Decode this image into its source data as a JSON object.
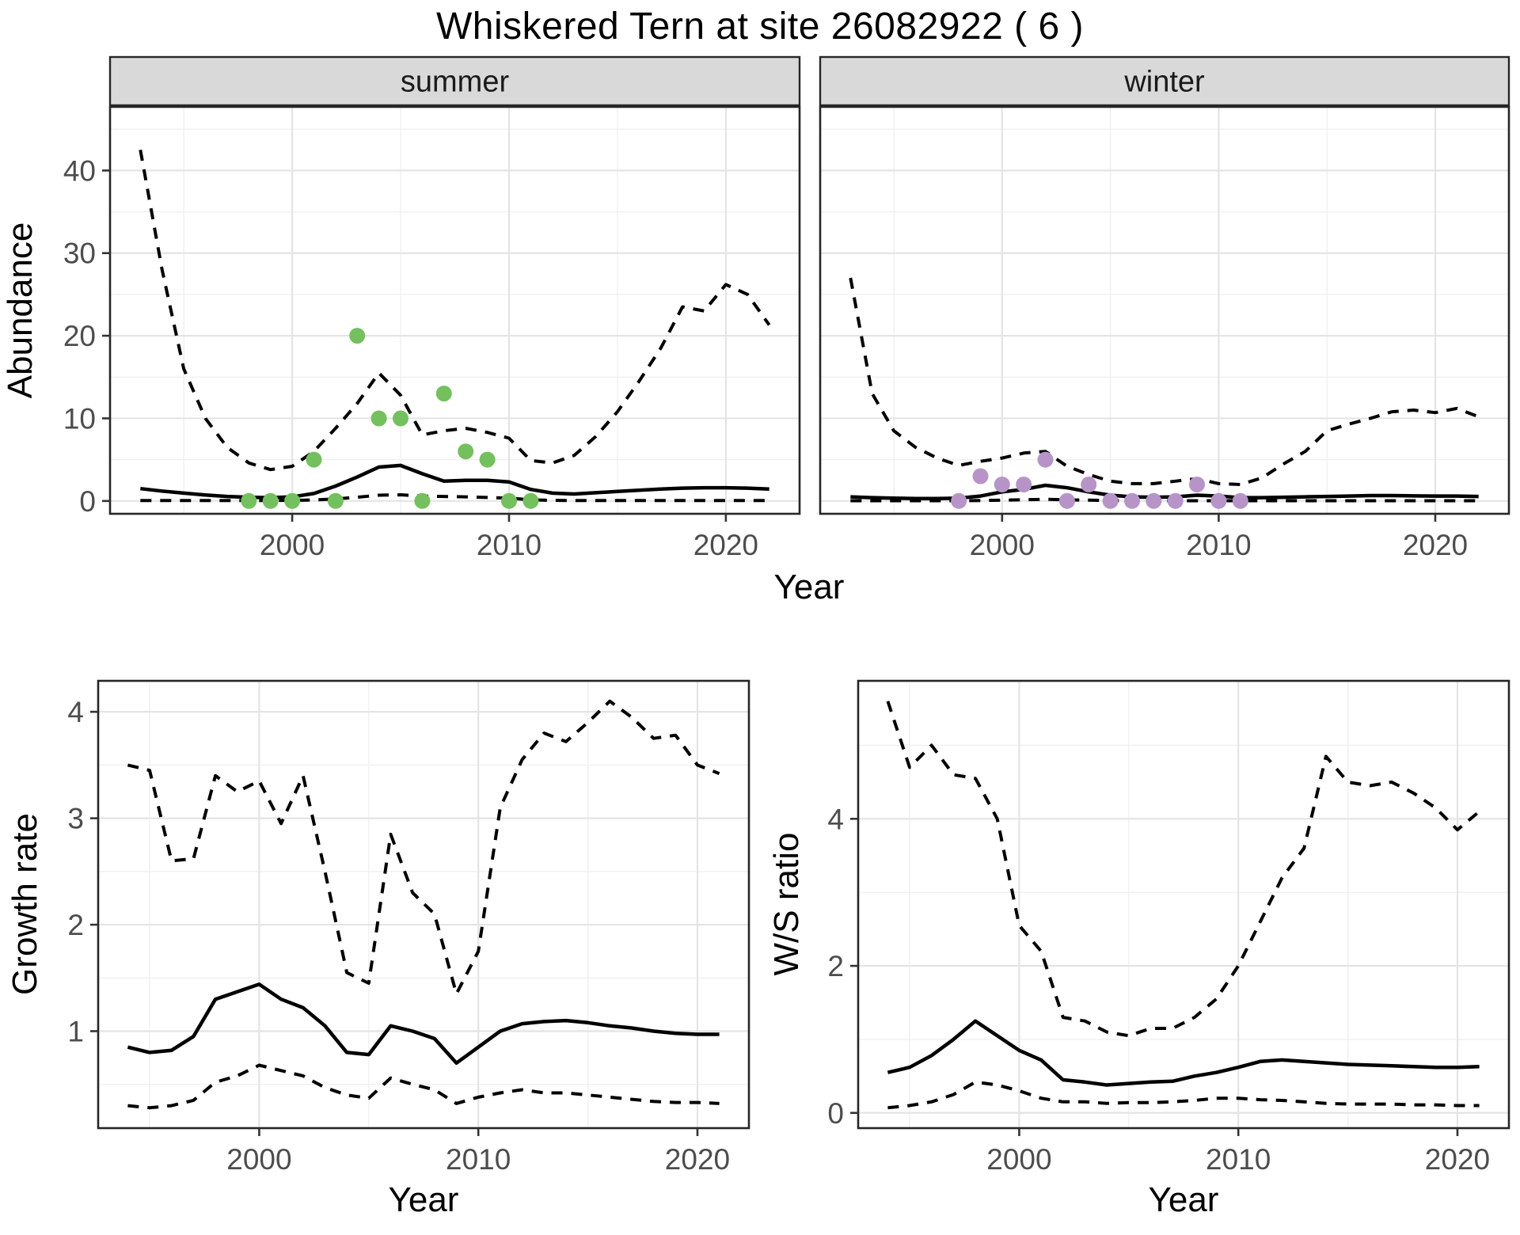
{
  "title": "Whiskered Tern at site 26082922 ( 6 )",
  "colors": {
    "strip_bg": "#d9d9d9",
    "strip_border": "#262626",
    "panel_border": "#262626",
    "grid_major": "#e4e4e4",
    "grid_minor": "#f0f0f0",
    "axis_text": "#4d4d4d",
    "title_text": "#000000",
    "line": "#000000",
    "summer_points": "#74c05e",
    "winter_points": "#b794c8"
  },
  "chart_data": [
    {
      "id": "abundance_summer",
      "type": "line",
      "facet_label": "summer",
      "ylabel": "Abundance",
      "xlabel": "Year",
      "x_range": [
        1991.6,
        2023.4
      ],
      "y_range": [
        -1.55,
        47.7
      ],
      "xticks": [
        2000,
        2010,
        2020
      ],
      "yticks": [
        0,
        10,
        20,
        30,
        40
      ],
      "x": [
        1993,
        1994,
        1995,
        1996,
        1997,
        1998,
        1999,
        2000,
        2001,
        2002,
        2003,
        2004,
        2005,
        2006,
        2007,
        2008,
        2009,
        2010,
        2011,
        2012,
        2013,
        2014,
        2015,
        2016,
        2017,
        2018,
        2019,
        2020,
        2021,
        2022
      ],
      "series": [
        {
          "name": "upper_95ci",
          "style": "dashed",
          "values": [
            42.5,
            28,
            16,
            10,
            6.5,
            4.6,
            3.8,
            4.2,
            6,
            8.8,
            11.8,
            15.5,
            12.8,
            8,
            8.5,
            8.8,
            8.3,
            7.6,
            4.9,
            4.6,
            5.5,
            7.8,
            10.8,
            14.5,
            18.5,
            23.5,
            23,
            26.2,
            25,
            21.3
          ]
        },
        {
          "name": "mean",
          "style": "solid",
          "values": [
            1.5,
            1.2,
            0.95,
            0.72,
            0.55,
            0.45,
            0.4,
            0.5,
            0.9,
            1.8,
            2.9,
            4.1,
            4.3,
            3.3,
            2.4,
            2.5,
            2.5,
            2.3,
            1.4,
            0.95,
            0.85,
            1.0,
            1.15,
            1.3,
            1.45,
            1.55,
            1.6,
            1.6,
            1.55,
            1.45
          ]
        },
        {
          "name": "lower_95ci",
          "style": "dashed",
          "values": [
            0.05,
            0.05,
            0.05,
            0.05,
            0.05,
            0.05,
            0.05,
            0.08,
            0.12,
            0.25,
            0.45,
            0.7,
            0.75,
            0.6,
            0.55,
            0.5,
            0.42,
            0.35,
            0.15,
            0.08,
            0.05,
            0.05,
            0.05,
            0.05,
            0.05,
            0.05,
            0.05,
            0.05,
            0.05,
            0.05
          ]
        }
      ],
      "points": {
        "name": "observed_counts_summer",
        "color": "#74c05e",
        "x": [
          1998,
          1999,
          2000,
          2001,
          2002,
          2003,
          2004,
          2005,
          2006,
          2007,
          2008,
          2009,
          2010,
          2011
        ],
        "values": [
          0,
          0,
          0,
          5,
          0,
          20,
          10,
          10,
          0,
          13,
          6,
          5,
          0,
          0
        ]
      }
    },
    {
      "id": "abundance_winter",
      "type": "line",
      "facet_label": "winter",
      "ylabel": "Abundance",
      "xlabel": "Year",
      "x_range": [
        1991.6,
        2023.4
      ],
      "y_range": [
        -1.55,
        47.7
      ],
      "xticks": [
        2000,
        2010,
        2020
      ],
      "yticks": [
        0,
        10,
        20,
        30,
        40
      ],
      "x": [
        1993,
        1994,
        1995,
        1996,
        1997,
        1998,
        1999,
        2000,
        2001,
        2002,
        2003,
        2004,
        2005,
        2006,
        2007,
        2008,
        2009,
        2010,
        2011,
        2012,
        2013,
        2014,
        2015,
        2016,
        2017,
        2018,
        2019,
        2020,
        2021,
        2022
      ],
      "series": [
        {
          "name": "upper_95ci",
          "style": "dashed",
          "values": [
            27,
            13,
            8.5,
            6.5,
            5.2,
            4.3,
            4.8,
            5.2,
            5.8,
            6.0,
            4.2,
            3.2,
            2.4,
            2.1,
            2.1,
            2.4,
            2.7,
            2.1,
            2.0,
            2.8,
            4.5,
            6.0,
            8.5,
            9.3,
            10,
            10.8,
            11,
            10.7,
            11.2,
            10.2
          ]
        },
        {
          "name": "mean",
          "style": "solid",
          "values": [
            0.5,
            0.4,
            0.35,
            0.3,
            0.3,
            0.35,
            0.6,
            1.1,
            1.4,
            1.9,
            1.6,
            1.1,
            0.7,
            0.5,
            0.45,
            0.5,
            0.7,
            0.6,
            0.4,
            0.4,
            0.45,
            0.5,
            0.55,
            0.6,
            0.65,
            0.65,
            0.62,
            0.6,
            0.6,
            0.55
          ]
        },
        {
          "name": "lower_95ci",
          "style": "dashed",
          "values": [
            0.03,
            0.03,
            0.03,
            0.03,
            0.03,
            0.03,
            0.06,
            0.1,
            0.15,
            0.2,
            0.15,
            0.1,
            0.05,
            0.03,
            0.03,
            0.03,
            0.03,
            0.03,
            0.03,
            0.03,
            0.03,
            0.03,
            0.03,
            0.03,
            0.03,
            0.03,
            0.03,
            0.03,
            0.03,
            0.03
          ]
        }
      ],
      "points": {
        "name": "observed_counts_winter",
        "color": "#b794c8",
        "x": [
          1998,
          1999,
          2000,
          2001,
          2002,
          2003,
          2004,
          2005,
          2006,
          2007,
          2008,
          2009,
          2010,
          2011
        ],
        "values": [
          0,
          3,
          2,
          2,
          5,
          0,
          2,
          0,
          0,
          0,
          0,
          2,
          0,
          0
        ]
      }
    },
    {
      "id": "growth_rate",
      "type": "line",
      "facet_label": null,
      "ylabel": "Growth rate",
      "xlabel": "Year",
      "x_range": [
        1992.65,
        2022.35
      ],
      "y_range": [
        0.089,
        4.291
      ],
      "xticks": [
        2000,
        2010,
        2020
      ],
      "yticks": [
        1,
        2,
        3,
        4
      ],
      "x": [
        1994,
        1995,
        1996,
        1997,
        1998,
        1999,
        2000,
        2001,
        2002,
        2003,
        2004,
        2005,
        2006,
        2007,
        2008,
        2009,
        2010,
        2011,
        2012,
        2013,
        2014,
        2015,
        2016,
        2017,
        2018,
        2019,
        2020,
        2021
      ],
      "series": [
        {
          "name": "upper_95ci",
          "style": "dashed",
          "values": [
            3.5,
            3.45,
            2.6,
            2.62,
            3.4,
            3.25,
            3.35,
            2.95,
            3.4,
            2.5,
            1.55,
            1.45,
            2.85,
            2.3,
            2.1,
            1.35,
            1.75,
            3.1,
            3.55,
            3.8,
            3.72,
            3.9,
            4.1,
            3.95,
            3.75,
            3.78,
            3.5,
            3.42
          ]
        },
        {
          "name": "mean",
          "style": "solid",
          "values": [
            0.85,
            0.8,
            0.82,
            0.95,
            1.3,
            1.37,
            1.44,
            1.3,
            1.22,
            1.05,
            0.8,
            0.78,
            1.05,
            1.0,
            0.93,
            0.7,
            0.85,
            1.0,
            1.07,
            1.09,
            1.1,
            1.08,
            1.05,
            1.03,
            1.0,
            0.98,
            0.97,
            0.97
          ]
        },
        {
          "name": "lower_95ci",
          "style": "dashed",
          "values": [
            0.3,
            0.28,
            0.3,
            0.35,
            0.52,
            0.58,
            0.68,
            0.63,
            0.58,
            0.47,
            0.4,
            0.37,
            0.56,
            0.5,
            0.45,
            0.32,
            0.38,
            0.42,
            0.45,
            0.42,
            0.42,
            0.4,
            0.38,
            0.36,
            0.34,
            0.33,
            0.33,
            0.32
          ]
        }
      ],
      "points": null
    },
    {
      "id": "ws_ratio",
      "type": "line",
      "facet_label": null,
      "ylabel": "W/S ratio",
      "xlabel": "Year",
      "x_range": [
        1992.65,
        2022.35
      ],
      "y_range": [
        -0.207,
        5.877
      ],
      "xticks": [
        2000,
        2010,
        2020
      ],
      "yticks": [
        0,
        2,
        4
      ],
      "x": [
        1994,
        1995,
        1996,
        1997,
        1998,
        1999,
        2000,
        2001,
        2002,
        2003,
        2004,
        2005,
        2006,
        2007,
        2008,
        2009,
        2010,
        2011,
        2012,
        2013,
        2014,
        2015,
        2016,
        2017,
        2018,
        2019,
        2020,
        2021
      ],
      "series": [
        {
          "name": "upper_95ci",
          "style": "dashed",
          "values": [
            5.6,
            4.7,
            5.0,
            4.6,
            4.55,
            4.0,
            2.55,
            2.2,
            1.3,
            1.25,
            1.1,
            1.05,
            1.15,
            1.15,
            1.3,
            1.55,
            2.0,
            2.6,
            3.2,
            3.6,
            4.85,
            4.5,
            4.45,
            4.5,
            4.35,
            4.15,
            3.85,
            4.1
          ]
        },
        {
          "name": "mean",
          "style": "solid",
          "values": [
            0.55,
            0.62,
            0.78,
            1.0,
            1.25,
            1.05,
            0.85,
            0.72,
            0.45,
            0.42,
            0.38,
            0.4,
            0.42,
            0.43,
            0.5,
            0.55,
            0.62,
            0.7,
            0.72,
            0.7,
            0.68,
            0.66,
            0.65,
            0.64,
            0.63,
            0.62,
            0.62,
            0.63
          ]
        },
        {
          "name": "lower_95ci",
          "style": "dashed",
          "values": [
            0.07,
            0.1,
            0.15,
            0.25,
            0.42,
            0.38,
            0.3,
            0.2,
            0.15,
            0.15,
            0.13,
            0.14,
            0.14,
            0.15,
            0.17,
            0.2,
            0.2,
            0.18,
            0.17,
            0.15,
            0.13,
            0.12,
            0.12,
            0.12,
            0.11,
            0.11,
            0.1,
            0.1
          ]
        }
      ],
      "points": null
    }
  ]
}
